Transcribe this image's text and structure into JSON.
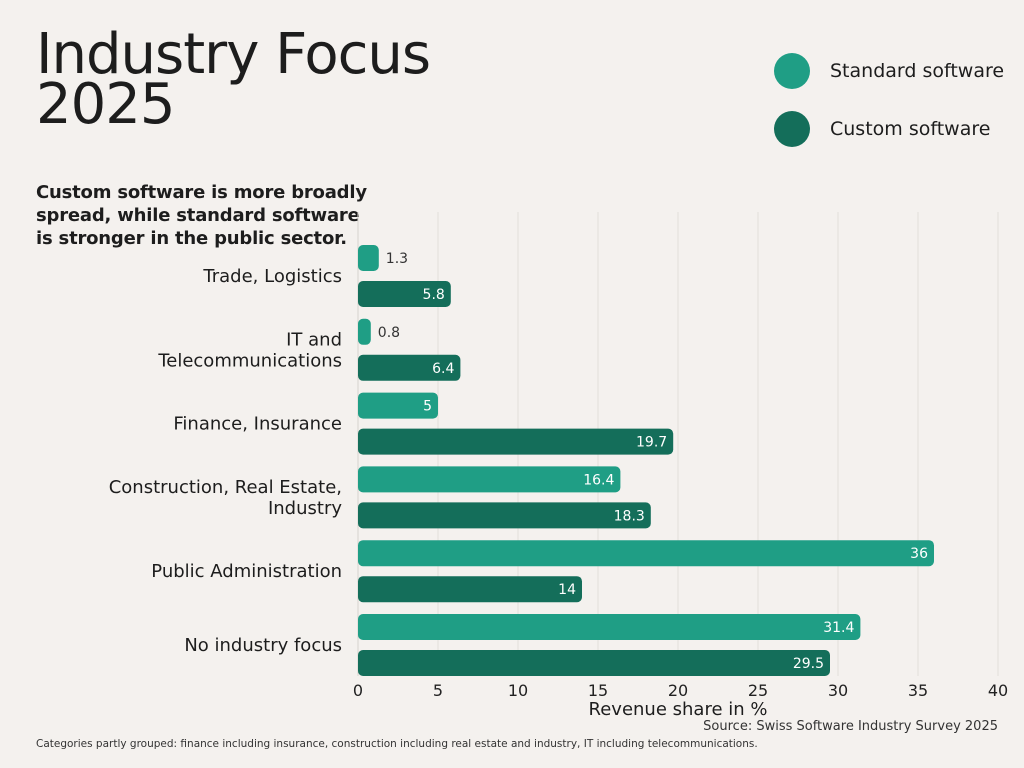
{
  "title": "Industry Focus 2025",
  "subtitle": "Custom software is more broadly spread, while standard software is stronger in the public sector.",
  "legend": [
    {
      "label": "Standard software",
      "color": "#1f9e85"
    },
    {
      "label": "Custom software",
      "color": "#146e5a"
    }
  ],
  "source": "Source: Swiss Software Industry Survey 2025",
  "footnote": "Categories partly grouped: finance including insurance, construction including real estate and industry, IT including telecommunications.",
  "chart_data": {
    "type": "bar",
    "orientation": "horizontal",
    "categories": [
      [
        "Trade, Logistics"
      ],
      [
        "IT and",
        "Telecommunications"
      ],
      [
        "Finance, Insurance"
      ],
      [
        "Construction, Real Estate,",
        "Industry"
      ],
      [
        "Public Administration"
      ],
      [
        "No industry focus"
      ]
    ],
    "series": [
      {
        "name": "Standard software",
        "color": "#1f9e85",
        "values": [
          1.3,
          0.8,
          5,
          16.4,
          36,
          31.4
        ]
      },
      {
        "name": "Custom software",
        "color": "#146e5a",
        "values": [
          5.8,
          6.4,
          19.7,
          18.3,
          14,
          29.5
        ]
      }
    ],
    "xlabel": "Revenue share in %",
    "xlim": [
      0,
      40
    ],
    "xticks": [
      0,
      5,
      10,
      15,
      20,
      25,
      30,
      35,
      40
    ],
    "grid": true
  }
}
